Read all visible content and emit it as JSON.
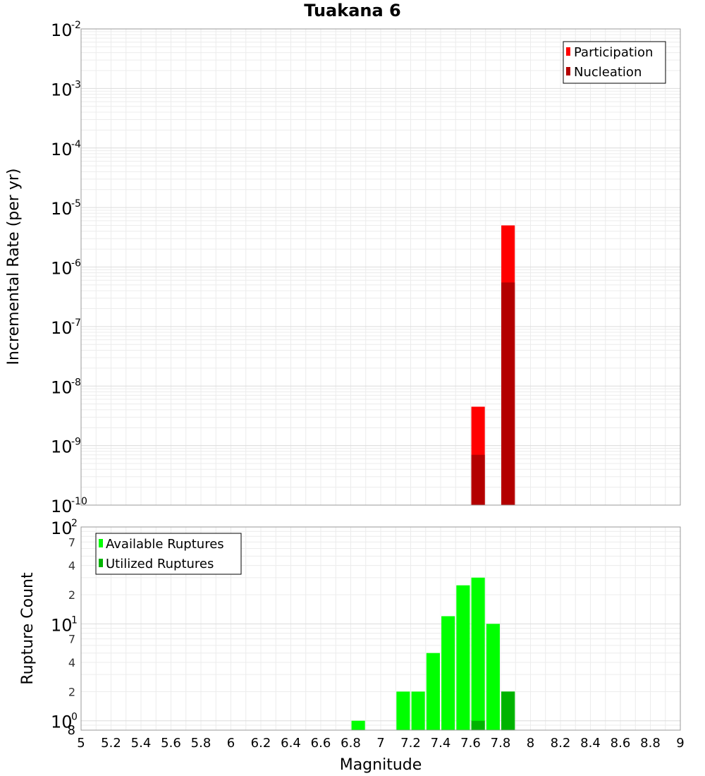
{
  "chart_data": [
    {
      "type": "bar",
      "title": "Tuakana 6",
      "xlabel": "Magnitude",
      "ylabel": "Incremental Rate (per yr)",
      "yscale": "log",
      "xlim": [
        5,
        9
      ],
      "ylim": [
        1e-10,
        0.01
      ],
      "grid": true,
      "bar_width": 0.09,
      "legend_position": "top-right",
      "series": [
        {
          "name": "Participation",
          "color": "#ff0000",
          "x": [
            7.65,
            7.85
          ],
          "values": [
            4.5e-09,
            5e-06
          ]
        },
        {
          "name": "Nucleation",
          "color": "#b30000",
          "x": [
            7.65,
            7.85
          ],
          "values": [
            7e-10,
            5.5e-07
          ]
        }
      ],
      "y_ticks": [
        {
          "base": "10",
          "exp": "-2"
        },
        {
          "base": "10",
          "exp": "-3"
        },
        {
          "base": "10",
          "exp": "-4"
        },
        {
          "base": "10",
          "exp": "-5"
        },
        {
          "base": "10",
          "exp": "-6"
        },
        {
          "base": "10",
          "exp": "-7"
        },
        {
          "base": "10",
          "exp": "-8"
        },
        {
          "base": "10",
          "exp": "-9"
        },
        {
          "base": "10",
          "exp": "-10"
        }
      ]
    },
    {
      "type": "bar",
      "xlabel": "Magnitude",
      "ylabel": "Rupture Count",
      "yscale": "log",
      "xlim": [
        5,
        9
      ],
      "ylim": [
        0.8,
        100
      ],
      "grid": true,
      "bar_width": 0.09,
      "legend_position": "top-left",
      "series": [
        {
          "name": "Available Ruptures",
          "color": "#00ff00",
          "x": [
            6.85,
            7.15,
            7.25,
            7.35,
            7.45,
            7.55,
            7.65,
            7.75,
            7.85
          ],
          "values": [
            1,
            2,
            2,
            5,
            12,
            25,
            30,
            10,
            2
          ]
        },
        {
          "name": "Utilized Ruptures",
          "color": "#00b300",
          "x": [
            7.65,
            7.85
          ],
          "values": [
            1,
            2
          ]
        }
      ],
      "y_tick_labels": [
        {
          "value": 100,
          "base": "10",
          "exp": "2"
        },
        {
          "value": 70,
          "label": "7"
        },
        {
          "value": 40,
          "label": "4"
        },
        {
          "value": 20,
          "label": "2"
        },
        {
          "value": 10,
          "base": "10",
          "exp": "1"
        },
        {
          "value": 7,
          "label": "7"
        },
        {
          "value": 4,
          "label": "4"
        },
        {
          "value": 2,
          "label": "2"
        },
        {
          "value": 1,
          "base": "10",
          "exp": "0"
        },
        {
          "value": 0.8,
          "label": "8"
        }
      ],
      "x_ticks": [
        "5",
        "5.2",
        "5.4",
        "5.6",
        "5.8",
        "6",
        "6.2",
        "6.4",
        "6.6",
        "6.8",
        "7",
        "7.2",
        "7.4",
        "7.6",
        "7.8",
        "8",
        "8.2",
        "8.4",
        "8.6",
        "8.8",
        "9"
      ]
    }
  ]
}
